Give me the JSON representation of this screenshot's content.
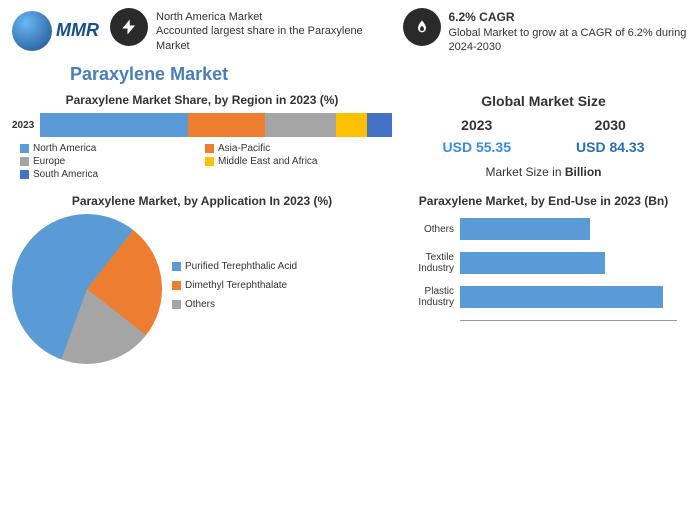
{
  "logo": {
    "text": "MMR"
  },
  "highlights": [
    {
      "icon": "bolt",
      "title": "North America Market",
      "text": "Accounted largest share in the Paraxylene Market"
    },
    {
      "icon": "flame",
      "title": "6.2% CAGR",
      "text": "Global Market to grow at a CAGR of 6.2% during 2024-2030"
    }
  ],
  "main_title": "Paraxylene Market",
  "region_chart": {
    "title": "Paraxylene Market Share, by Region in 2023 (%)",
    "row_label": "2023",
    "segments": [
      {
        "name": "North America",
        "pct": 42,
        "color": "#5b9bd5"
      },
      {
        "name": "Asia-Pacific",
        "pct": 22,
        "color": "#ed7d31"
      },
      {
        "name": "Europe",
        "pct": 20,
        "color": "#a5a5a5"
      },
      {
        "name": "Middle East and Africa",
        "pct": 9,
        "color": "#ffc000"
      },
      {
        "name": "South America",
        "pct": 7,
        "color": "#4472c4"
      }
    ]
  },
  "gms": {
    "title": "Global Market Size",
    "items": [
      {
        "year": "2023",
        "value": "USD 55.35",
        "color": "#3a8fd4"
      },
      {
        "year": "2030",
        "value": "USD 84.33",
        "color": "#2a6fb5"
      }
    ],
    "unit_pre": "Market Size in ",
    "unit_b": "Billion"
  },
  "app_chart": {
    "title": "Paraxylene Market, by Application In 2023 (%)",
    "slices": [
      {
        "name": "Purified Terephthalic Acid",
        "pct": 55,
        "color": "#5b9bd5"
      },
      {
        "name": "Dimethyl Terephthalate",
        "pct": 25,
        "color": "#ed7d31"
      },
      {
        "name": "Others",
        "pct": 20,
        "color": "#a5a5a5"
      }
    ]
  },
  "enduse_chart": {
    "title": "Paraxylene Market, by End-Use in 2023 (Bn)",
    "max": 30,
    "bars": [
      {
        "name": "Others",
        "value": 18,
        "color": "#5b9bd5"
      },
      {
        "name": "Textile Industry",
        "value": 20,
        "color": "#5b9bd5"
      },
      {
        "name": "Plastic Industry",
        "value": 28,
        "color": "#5b9bd5"
      }
    ]
  }
}
